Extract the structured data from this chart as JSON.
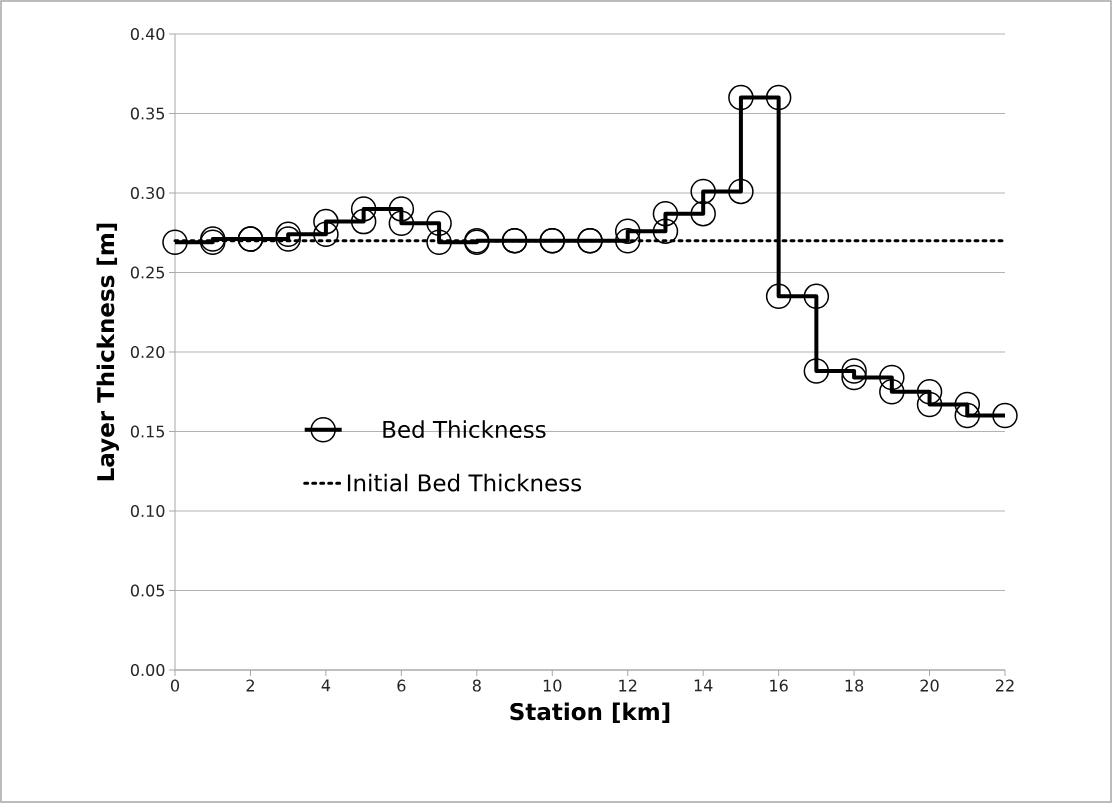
{
  "chart_data": {
    "type": "line",
    "xlabel": "Station [km]",
    "ylabel": "Layer Thickness [m]",
    "xlim": [
      0,
      22
    ],
    "xticks": [
      0,
      2,
      4,
      6,
      8,
      10,
      12,
      14,
      16,
      18,
      20,
      22
    ],
    "ylim": [
      0,
      0.4
    ],
    "yticks": [
      {
        "value": 0,
        "label": "0.00"
      },
      {
        "value": 0.05,
        "label": "0.05"
      },
      {
        "value": 0.1,
        "label": "0.10"
      },
      {
        "value": 0.15,
        "label": "0.15"
      },
      {
        "value": 0.2,
        "label": "0.20"
      },
      {
        "value": 0.25,
        "label": "0.25"
      },
      {
        "value": 0.3,
        "label": "0.30"
      },
      {
        "value": 0.35,
        "label": "0.35"
      },
      {
        "value": 0.4,
        "label": "0.40"
      }
    ],
    "grid": "y",
    "legend": "left",
    "series": [
      {
        "name": "Bed Thickness",
        "color": "#000000",
        "marker": "circle",
        "line_style": "solid",
        "x": [
          0,
          1,
          1,
          2,
          2,
          3,
          3,
          4,
          4,
          5,
          5,
          6,
          6,
          7,
          7,
          8,
          8,
          9,
          9,
          10,
          10,
          11,
          11,
          12,
          12,
          13,
          13,
          14,
          14,
          15,
          15,
          16,
          16,
          17,
          17,
          18,
          18,
          19,
          19,
          20,
          20,
          21,
          21,
          22
        ],
        "values": [
          0.269,
          0.269,
          0.271,
          0.271,
          0.271,
          0.271,
          0.274,
          0.274,
          0.282,
          0.282,
          0.29,
          0.29,
          0.281,
          0.281,
          0.269,
          0.269,
          0.27,
          0.27,
          0.27,
          0.27,
          0.27,
          0.27,
          0.27,
          0.27,
          0.276,
          0.276,
          0.287,
          0.287,
          0.301,
          0.301,
          0.36,
          0.36,
          0.235,
          0.235,
          0.188,
          0.188,
          0.184,
          0.184,
          0.175,
          0.175,
          0.167,
          0.167,
          0.16,
          0.16
        ]
      },
      {
        "name": "Initial Bed Thickness",
        "color": "#000000",
        "marker": "none",
        "line_style": "dotted",
        "x": [
          0,
          22
        ],
        "values": [
          0.27,
          0.27
        ]
      }
    ]
  }
}
